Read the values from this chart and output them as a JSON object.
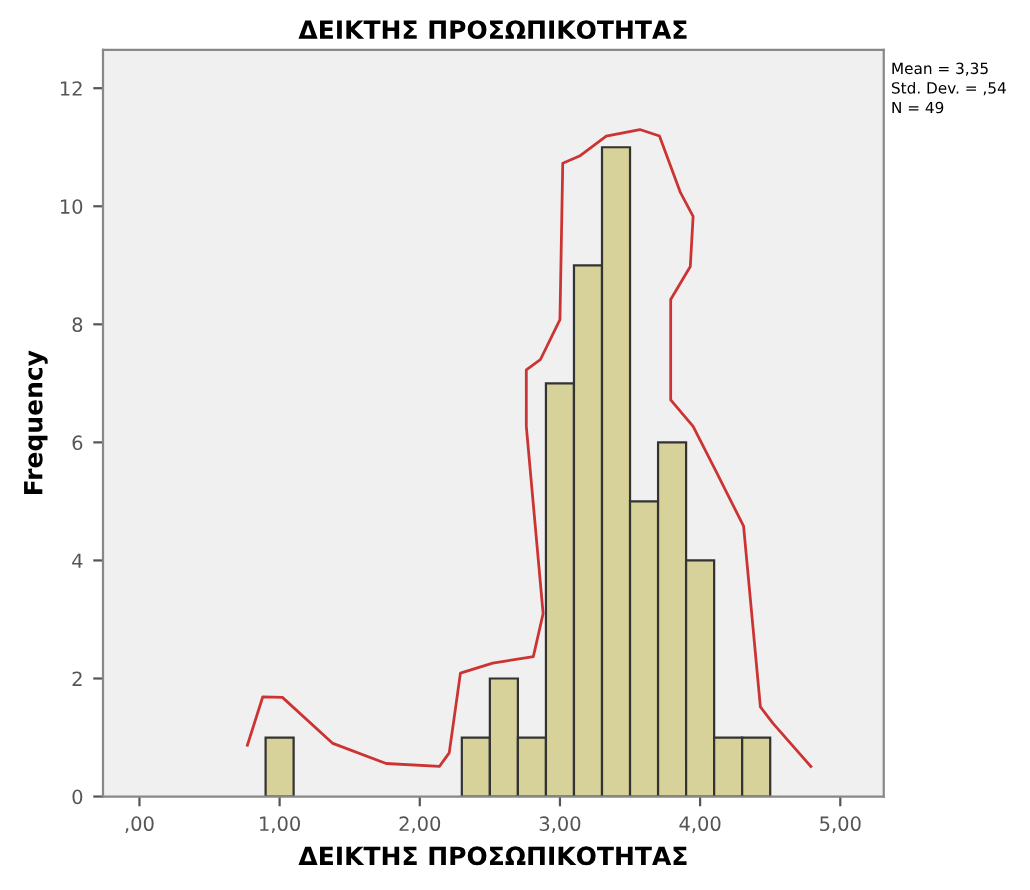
{
  "chart_data": {
    "type": "histogram",
    "title": "ΔΕΙΚΤΗΣ ΠΡΟΣΩΠΙΚΟΤΗΤΑΣ",
    "xlabel": "ΔΕΙΚΤΗΣ ΠΡΟΣΩΠΙΚΟΤΗΤΑΣ",
    "ylabel": "Frequency",
    "bins": [
      0.9,
      1.1,
      1.3,
      1.5,
      1.7,
      1.9,
      2.1,
      2.3,
      2.5,
      2.7,
      2.9,
      3.1,
      3.3,
      3.5,
      3.7,
      3.9,
      4.1,
      4.3,
      4.5
    ],
    "values": [
      1,
      0,
      0,
      0,
      0,
      0,
      0,
      1,
      2,
      1,
      7,
      9,
      11,
      5,
      6,
      4,
      1,
      1
    ],
    "color": "#d6d29a",
    "series": [
      {
        "type": "line",
        "color": "#cc3333",
        "x": [
          0.77,
          0.88,
          1.02,
          1.38,
          1.76,
          2.14,
          2.21,
          2.29,
          2.52,
          2.81,
          2.88,
          2.76,
          2.76,
          2.86,
          3.0,
          3.02,
          3.14,
          3.33,
          3.57,
          3.71,
          3.86,
          3.95,
          3.93,
          3.79,
          3.79,
          3.95,
          4.12,
          4.31,
          4.43,
          4.52,
          4.79
        ],
        "values": [
          0.87,
          1.69,
          1.68,
          0.9,
          0.56,
          0.51,
          0.74,
          2.09,
          2.26,
          2.37,
          3.1,
          6.27,
          7.23,
          7.4,
          8.08,
          10.73,
          10.85,
          11.19,
          11.3,
          11.19,
          10.23,
          9.83,
          8.98,
          8.42,
          6.72,
          6.27,
          5.48,
          4.58,
          1.52,
          1.24,
          0.51
        ]
      }
    ],
    "xlim": [
      -0.26,
      5.31
    ],
    "ylim": [
      0,
      12.65
    ],
    "xticks": [
      {
        "value": 0,
        "label": ",00"
      },
      {
        "value": 1,
        "label": "1,00"
      },
      {
        "value": 2,
        "label": "2,00"
      },
      {
        "value": 3,
        "label": "3,00"
      },
      {
        "value": 4,
        "label": "4,00"
      },
      {
        "value": 5,
        "label": "5,00"
      }
    ],
    "yticks": [
      0,
      2,
      4,
      6,
      8,
      10,
      12
    ],
    "annotations": [
      "Mean = 3,35",
      "Std. Dev. = ,54",
      "N = 49"
    ],
    "grid": false,
    "legend": false
  }
}
